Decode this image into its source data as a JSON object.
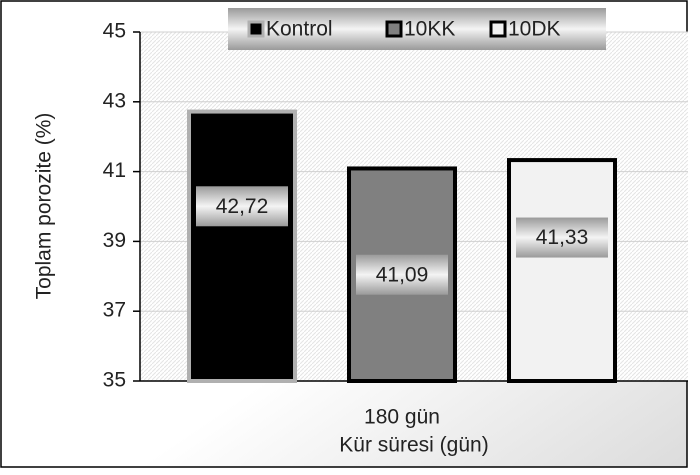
{
  "chart_data": {
    "type": "bar",
    "categories": [
      "180 gün"
    ],
    "x_label": "Kür süresi (gün)",
    "y_label": "Toplam porozite (%)",
    "series": [
      {
        "name": "Kontrol",
        "color": "#000000",
        "edgecolor": "#b0b0b0",
        "values": [
          42.72
        ],
        "value_labels": [
          "42,72"
        ]
      },
      {
        "name": "10KK",
        "color": "#808080",
        "edgecolor": "#000000",
        "values": [
          41.09
        ],
        "value_labels": [
          "41,09"
        ]
      },
      {
        "name": "10DK",
        "color": "#f2f2f2",
        "edgecolor": "#000000",
        "values": [
          41.33
        ],
        "value_labels": [
          "41,33"
        ]
      }
    ],
    "ylim": [
      35,
      45
    ],
    "yticks": [
      35,
      37,
      39,
      41,
      43,
      45
    ],
    "grid": true,
    "legend": "top"
  }
}
